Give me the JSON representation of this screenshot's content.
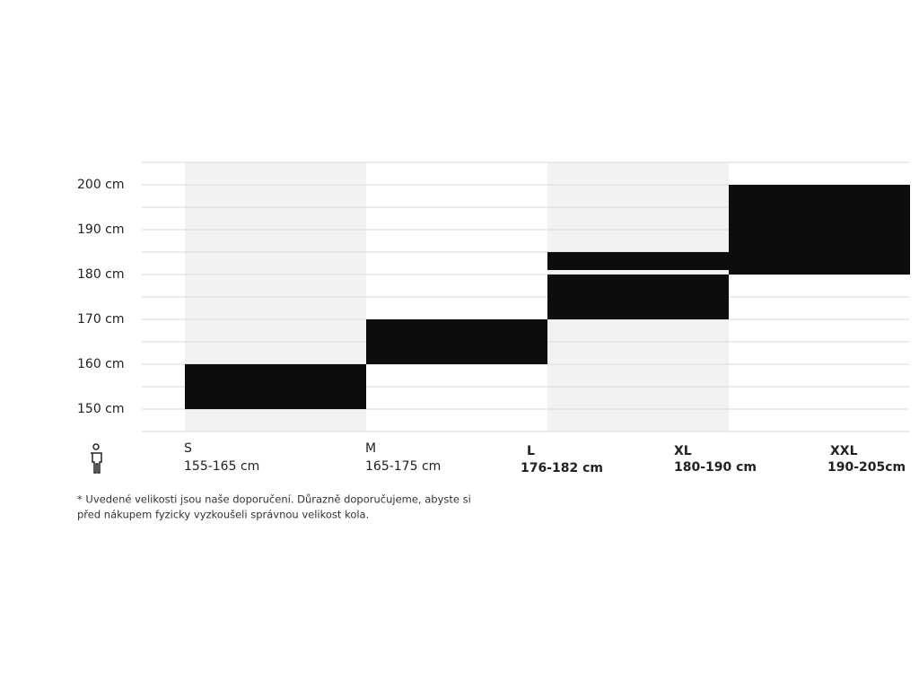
{
  "chart_data": {
    "type": "range-bar",
    "ylim": [
      145,
      205
    ],
    "yticks": [
      {
        "value": 150,
        "label": "150 cm"
      },
      {
        "value": 160,
        "label": "160 cm"
      },
      {
        "value": 170,
        "label": "170 cm"
      },
      {
        "value": 180,
        "label": "180 cm"
      },
      {
        "value": 190,
        "label": "190 cm"
      },
      {
        "value": 200,
        "label": "200 cm"
      }
    ],
    "grid_lines": [
      145,
      155,
      165,
      175,
      185,
      195,
      205
    ],
    "grid": true,
    "bar_color": "#0d0d0d",
    "band_color": "#f2f2f2",
    "columns": [
      {
        "shaded": true,
        "bars": [
          [
            150,
            160
          ]
        ]
      },
      {
        "shaded": false,
        "bars": [
          [
            160,
            170
          ]
        ]
      },
      {
        "shaded": true,
        "bars": [
          [
            170,
            180
          ],
          [
            181,
            185
          ]
        ]
      },
      {
        "shaded": false,
        "bars": [
          [
            180,
            200
          ]
        ]
      }
    ],
    "sizes": [
      {
        "name": "S",
        "range": "155-165 cm"
      },
      {
        "name": "M",
        "range": "165-175 cm"
      },
      {
        "name": "L",
        "range": "176-182 cm"
      },
      {
        "name": "XL",
        "range": "180-190 cm"
      },
      {
        "name": "XXL",
        "range": "190-205cm"
      }
    ],
    "footnote": [
      "* Uvedené velikosti jsou naše doporučení. Důrazně doporučujeme, abyste si",
      "před nákupem fyzicky vyzkoušeli správnou velikost kola."
    ]
  }
}
